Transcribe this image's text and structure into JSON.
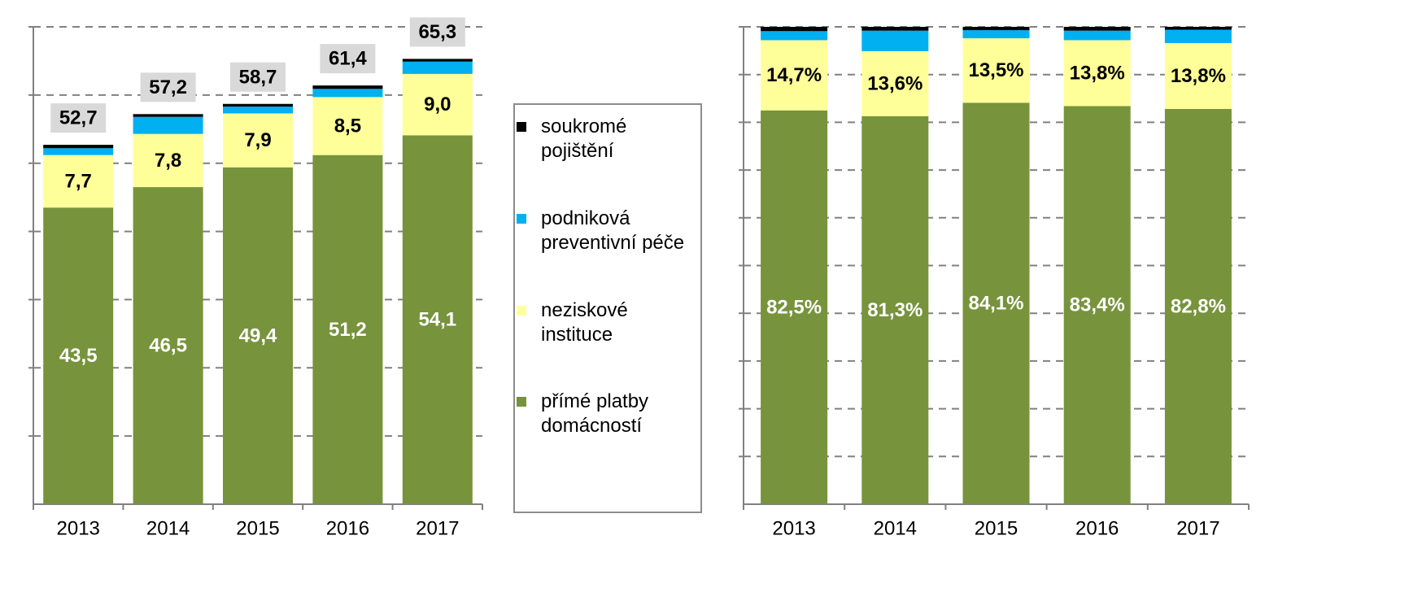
{
  "chart_data": [
    {
      "type": "bar",
      "stacked": true,
      "categories": [
        "2013",
        "2014",
        "2015",
        "2016",
        "2017"
      ],
      "ylim": [
        0,
        70
      ],
      "grid": true,
      "series": [
        {
          "name": "přímé platby domácností",
          "color": "#77933c",
          "values": [
            43.5,
            46.5,
            49.4,
            51.2,
            54.1
          ],
          "labels": [
            "43,5",
            "46,5",
            "49,4",
            "51,2",
            "54,1"
          ]
        },
        {
          "name": "neziskové instituce",
          "color": "#ffff99",
          "values": [
            7.7,
            7.8,
            7.9,
            8.5,
            9.0
          ],
          "labels": [
            "7,7",
            "7,8",
            "7,9",
            "8,5",
            "9,0"
          ]
        },
        {
          "name": "podniková preventivní péče",
          "color": "#00b0f0",
          "values": [
            1.0,
            2.5,
            1.0,
            1.2,
            1.8
          ]
        },
        {
          "name": "soukromé pojištění",
          "color": "#000000",
          "values": [
            0.5,
            0.4,
            0.4,
            0.5,
            0.4
          ]
        }
      ],
      "totals": [
        "52,7",
        "57,2",
        "58,7",
        "61,4",
        "65,3"
      ]
    },
    {
      "type": "bar",
      "stacked": true,
      "percent": true,
      "categories": [
        "2013",
        "2014",
        "2015",
        "2016",
        "2017"
      ],
      "ylim": [
        0,
        100
      ],
      "grid": true,
      "series": [
        {
          "name": "přímé platby domácností",
          "color": "#77933c",
          "values": [
            82.5,
            81.3,
            84.1,
            83.4,
            82.8
          ],
          "labels": [
            "82,5%",
            "81,3%",
            "84,1%",
            "83,4%",
            "82,8%"
          ]
        },
        {
          "name": "neziskové instituce",
          "color": "#ffff99",
          "values": [
            14.7,
            13.6,
            13.5,
            13.8,
            13.8
          ],
          "labels": [
            "14,7%",
            "13,6%",
            "13,5%",
            "13,8%",
            "13,8%"
          ]
        },
        {
          "name": "podniková preventivní péče",
          "color": "#00b0f0",
          "values": [
            1.9,
            4.3,
            1.7,
            2.0,
            2.8
          ]
        },
        {
          "name": "soukromé pojištění",
          "color": "#000000",
          "values": [
            0.9,
            0.8,
            0.7,
            0.8,
            0.6
          ]
        }
      ]
    }
  ],
  "legend": {
    "placement": "between-charts",
    "items": [
      {
        "label": "soukromé pojištění",
        "color": "#000000"
      },
      {
        "label": "podniková preventivní péče",
        "color": "#00b0f0"
      },
      {
        "label": "neziskové instituce",
        "color": "#ffff99"
      },
      {
        "label": "přímé platby domácností",
        "color": "#77933c"
      }
    ]
  }
}
